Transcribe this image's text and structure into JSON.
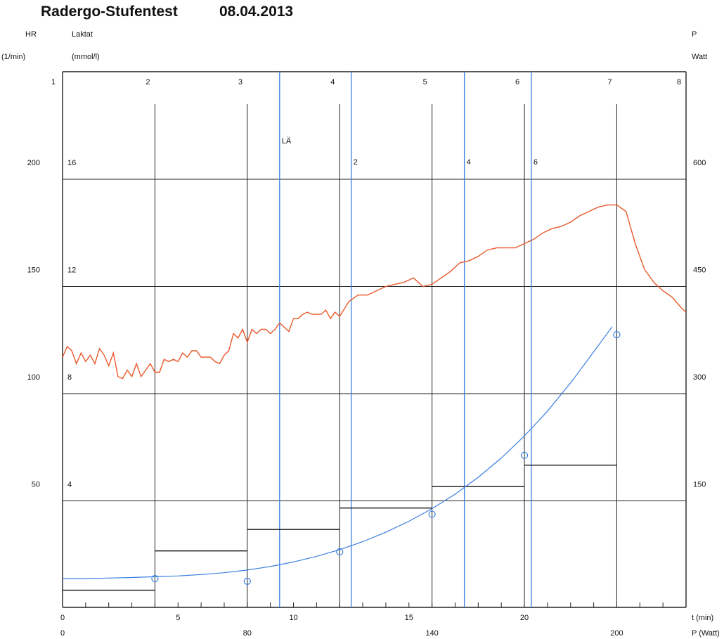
{
  "chart_data": {
    "type": "line",
    "title": "Radergo-Stufentest",
    "date": "08.04.2013",
    "left_axis_hr": {
      "label": "HR",
      "unit": "(1/min)",
      "ticks": [
        50,
        100,
        150,
        200
      ],
      "range": [
        0,
        200
      ]
    },
    "left_axis_lactate": {
      "label": "Laktat",
      "unit": "(mmol/l)",
      "ticks": [
        4,
        8,
        12,
        16
      ],
      "range": [
        0,
        16
      ]
    },
    "right_axis_power": {
      "label": "P",
      "unit": "Watt",
      "ticks": [
        150,
        300,
        450,
        600
      ],
      "range": [
        0,
        600
      ]
    },
    "x_axis_time": {
      "unit_label": "t (min)",
      "ticks": [
        0,
        5,
        10,
        15,
        20
      ],
      "range": [
        0,
        27
      ]
    },
    "x_axis_power": {
      "unit_label": "P (Watt)",
      "ticks": [
        0,
        80,
        140,
        200
      ]
    },
    "stages": {
      "labels": [
        "1",
        "2",
        "3",
        "4",
        "5",
        "6",
        "7",
        "8"
      ],
      "boundaries_min": [
        4,
        8,
        12,
        16,
        20,
        24
      ]
    },
    "lactate_markers": {
      "labels": [
        "LÄ",
        "2",
        "4",
        "6"
      ],
      "times_min": [
        9.4,
        12.5,
        17.4,
        20.3
      ]
    },
    "power_steps": [
      {
        "from": 0,
        "to": 4,
        "watt": 25
      },
      {
        "from": 4,
        "to": 8,
        "watt": 80
      },
      {
        "from": 8,
        "to": 12,
        "watt": 110
      },
      {
        "from": 12,
        "to": 16,
        "watt": 140
      },
      {
        "from": 16,
        "to": 20,
        "watt": 170
      },
      {
        "from": 20,
        "to": 24,
        "watt": 200
      }
    ],
    "series": [
      {
        "unit": "1/min",
        "color": "#e8582a",
        "x": [
          0,
          0.2,
          0.4,
          0.6,
          0.8,
          1.0,
          1.2,
          1.4,
          1.6,
          1.8,
          2.0,
          2.2,
          2.4,
          2.6,
          2.8,
          3.0,
          3.2,
          3.4,
          3.6,
          3.8,
          4.0,
          4.2,
          4.4,
          4.6,
          4.8,
          5.0,
          5.2,
          5.4,
          5.6,
          5.8,
          6.0,
          6.2,
          6.4,
          6.6,
          6.8,
          7.0,
          7.2,
          7.4,
          7.6,
          7.8,
          8.0,
          8.2,
          8.4,
          8.6,
          8.8,
          9.0,
          9.2,
          9.4,
          9.6,
          9.8,
          10.0,
          10.2,
          10.4,
          10.6,
          10.8,
          11.0,
          11.2,
          11.4,
          11.6,
          11.8,
          12.0,
          12.4,
          12.8,
          13.2,
          13.6,
          14.0,
          14.4,
          14.8,
          15.2,
          15.6,
          16.0,
          16.4,
          16.8,
          17.2,
          17.6,
          18.0,
          18.4,
          18.8,
          19.2,
          19.6,
          20.0,
          20.4,
          20.8,
          21.2,
          21.6,
          22.0,
          22.4,
          22.8,
          23.2,
          23.6,
          24.0,
          24.4,
          24.8,
          25.2,
          25.6,
          26.0,
          26.4,
          26.8,
          27.0
        ],
        "y": [
          117,
          122,
          120,
          114,
          119,
          115,
          118,
          114,
          121,
          118,
          113,
          119,
          108,
          107,
          111,
          108,
          114,
          108,
          111,
          114,
          110,
          110,
          116,
          115,
          116,
          115,
          119,
          117,
          120,
          120,
          117,
          117,
          117,
          115,
          114,
          118,
          120,
          128,
          126,
          130,
          124,
          130,
          128,
          130,
          130,
          128,
          130,
          133,
          131,
          129,
          135,
          135,
          137,
          138,
          137,
          137,
          137,
          139,
          135,
          138,
          136,
          143,
          146,
          146,
          148,
          150,
          151,
          152,
          154,
          150,
          151,
          154,
          157,
          161,
          162,
          164,
          167,
          168,
          168,
          168,
          170,
          172,
          175,
          177,
          178,
          180,
          183,
          185,
          187,
          188,
          188,
          185,
          170,
          158,
          152,
          148,
          145,
          140,
          138
        ]
      },
      {
        "unit": "mmol/l",
        "color": "#3a7fe0",
        "x": [
          4,
          8,
          12,
          16,
          20,
          24
        ],
        "y": [
          1.1,
          1.0,
          2.1,
          3.5,
          5.7,
          10.2
        ]
      }
    ],
    "lactate_fit": {
      "color": "#3a7fe0",
      "x": [
        0,
        1,
        2,
        3,
        4,
        5,
        6,
        7,
        8,
        9,
        10,
        11,
        12,
        13,
        14,
        15,
        16,
        17,
        18,
        19,
        20,
        21,
        22,
        23,
        23.8
      ],
      "y": [
        1.1,
        1.1,
        1.12,
        1.14,
        1.17,
        1.2,
        1.25,
        1.32,
        1.42,
        1.55,
        1.72,
        1.93,
        2.18,
        2.48,
        2.83,
        3.24,
        3.71,
        4.25,
        4.88,
        5.6,
        6.42,
        7.35,
        8.4,
        9.56,
        10.5
      ]
    }
  }
}
